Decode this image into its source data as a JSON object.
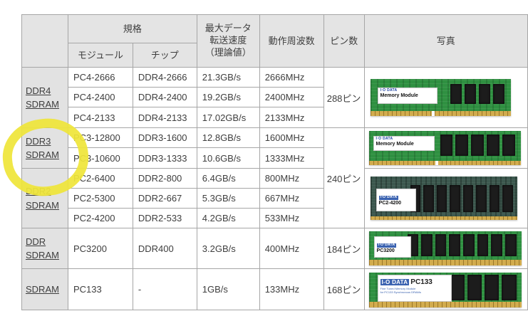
{
  "colors": {
    "highlight": "#efe53a",
    "header_bg": "#e4e4e4",
    "border": "#a6a6a6",
    "text": "#3e3e3e",
    "pcb_green": "#2f9041",
    "pcb_dark": "#3c584e",
    "gold_edge": "#d2ac4e",
    "badge_blue": "#3a62b0"
  },
  "table": {
    "header": {
      "corner": "",
      "spec": "規格",
      "module": "モジュール",
      "chip": "チップ",
      "transfer_lines": [
        "最大データ",
        "転送速度",
        "（理論値）"
      ],
      "frequency": "動作周波数",
      "pins": "ピン数",
      "photo": "写真"
    },
    "ddr4": {
      "label_lines": [
        "DDR4",
        "SDRAM"
      ],
      "pins": "288ピン",
      "rows": [
        [
          "PC4-2666",
          "DDR4-2666",
          "21.3GB/s",
          "2666MHz"
        ],
        [
          "PC4-2400",
          "DDR4-2400",
          "19.2GB/s",
          "2400MHz"
        ],
        [
          "PC4-2133",
          "DDR4-2133",
          "17.02GB/s",
          "2133MHz"
        ]
      ]
    },
    "ddr3": {
      "label_lines": [
        "DDR3",
        "SDRAM"
      ],
      "rows": [
        [
          "PC3-12800",
          "DDR3-1600",
          "12.8GB/s",
          "1600MHz"
        ],
        [
          "PC3-10600",
          "DDR3-1333",
          "10.6GB/s",
          "1333MHz"
        ]
      ]
    },
    "ddr3_ddr2_pins": "240ピン",
    "ddr2": {
      "label_lines": [
        "DDR2",
        "SDRAM"
      ],
      "rows": [
        [
          "PC2-6400",
          "DDR2-800",
          "6.4GB/s",
          "800MHz"
        ],
        [
          "PC2-5300",
          "DDR2-667",
          "5.3GB/s",
          "667MHz"
        ],
        [
          "PC2-4200",
          "DDR2-533",
          "4.2GB/s",
          "533MHz"
        ]
      ]
    },
    "ddr": {
      "label_lines": [
        "DDR",
        "SDRAM"
      ],
      "pins": "184ピン",
      "rows": [
        [
          "PC3200",
          "DDR400",
          "3.2GB/s",
          "400MHz"
        ]
      ]
    },
    "sdram": {
      "label_lines": [
        "SDRAM"
      ],
      "pins": "168ピン",
      "rows": [
        [
          "PC133",
          "-",
          "1GB/s",
          "133MHz"
        ]
      ]
    }
  },
  "photos": {
    "ddr4": {
      "brand": "I·O DATA",
      "label": "Memory Module"
    },
    "ddr3": {
      "brand": "I·O DATA",
      "label": "Memory Module"
    },
    "ddr2": {
      "brand": "I-O DATA",
      "label": "PC2-4200"
    },
    "ddr": {
      "brand": "I-O DATA",
      "label": "PC3200"
    },
    "sdram": {
      "brand": "I-O DATA",
      "label": "PC133",
      "sub1": "Fine Tuned Memory Module",
      "sub2": "for PC133 Synchronous DRAMs"
    }
  }
}
